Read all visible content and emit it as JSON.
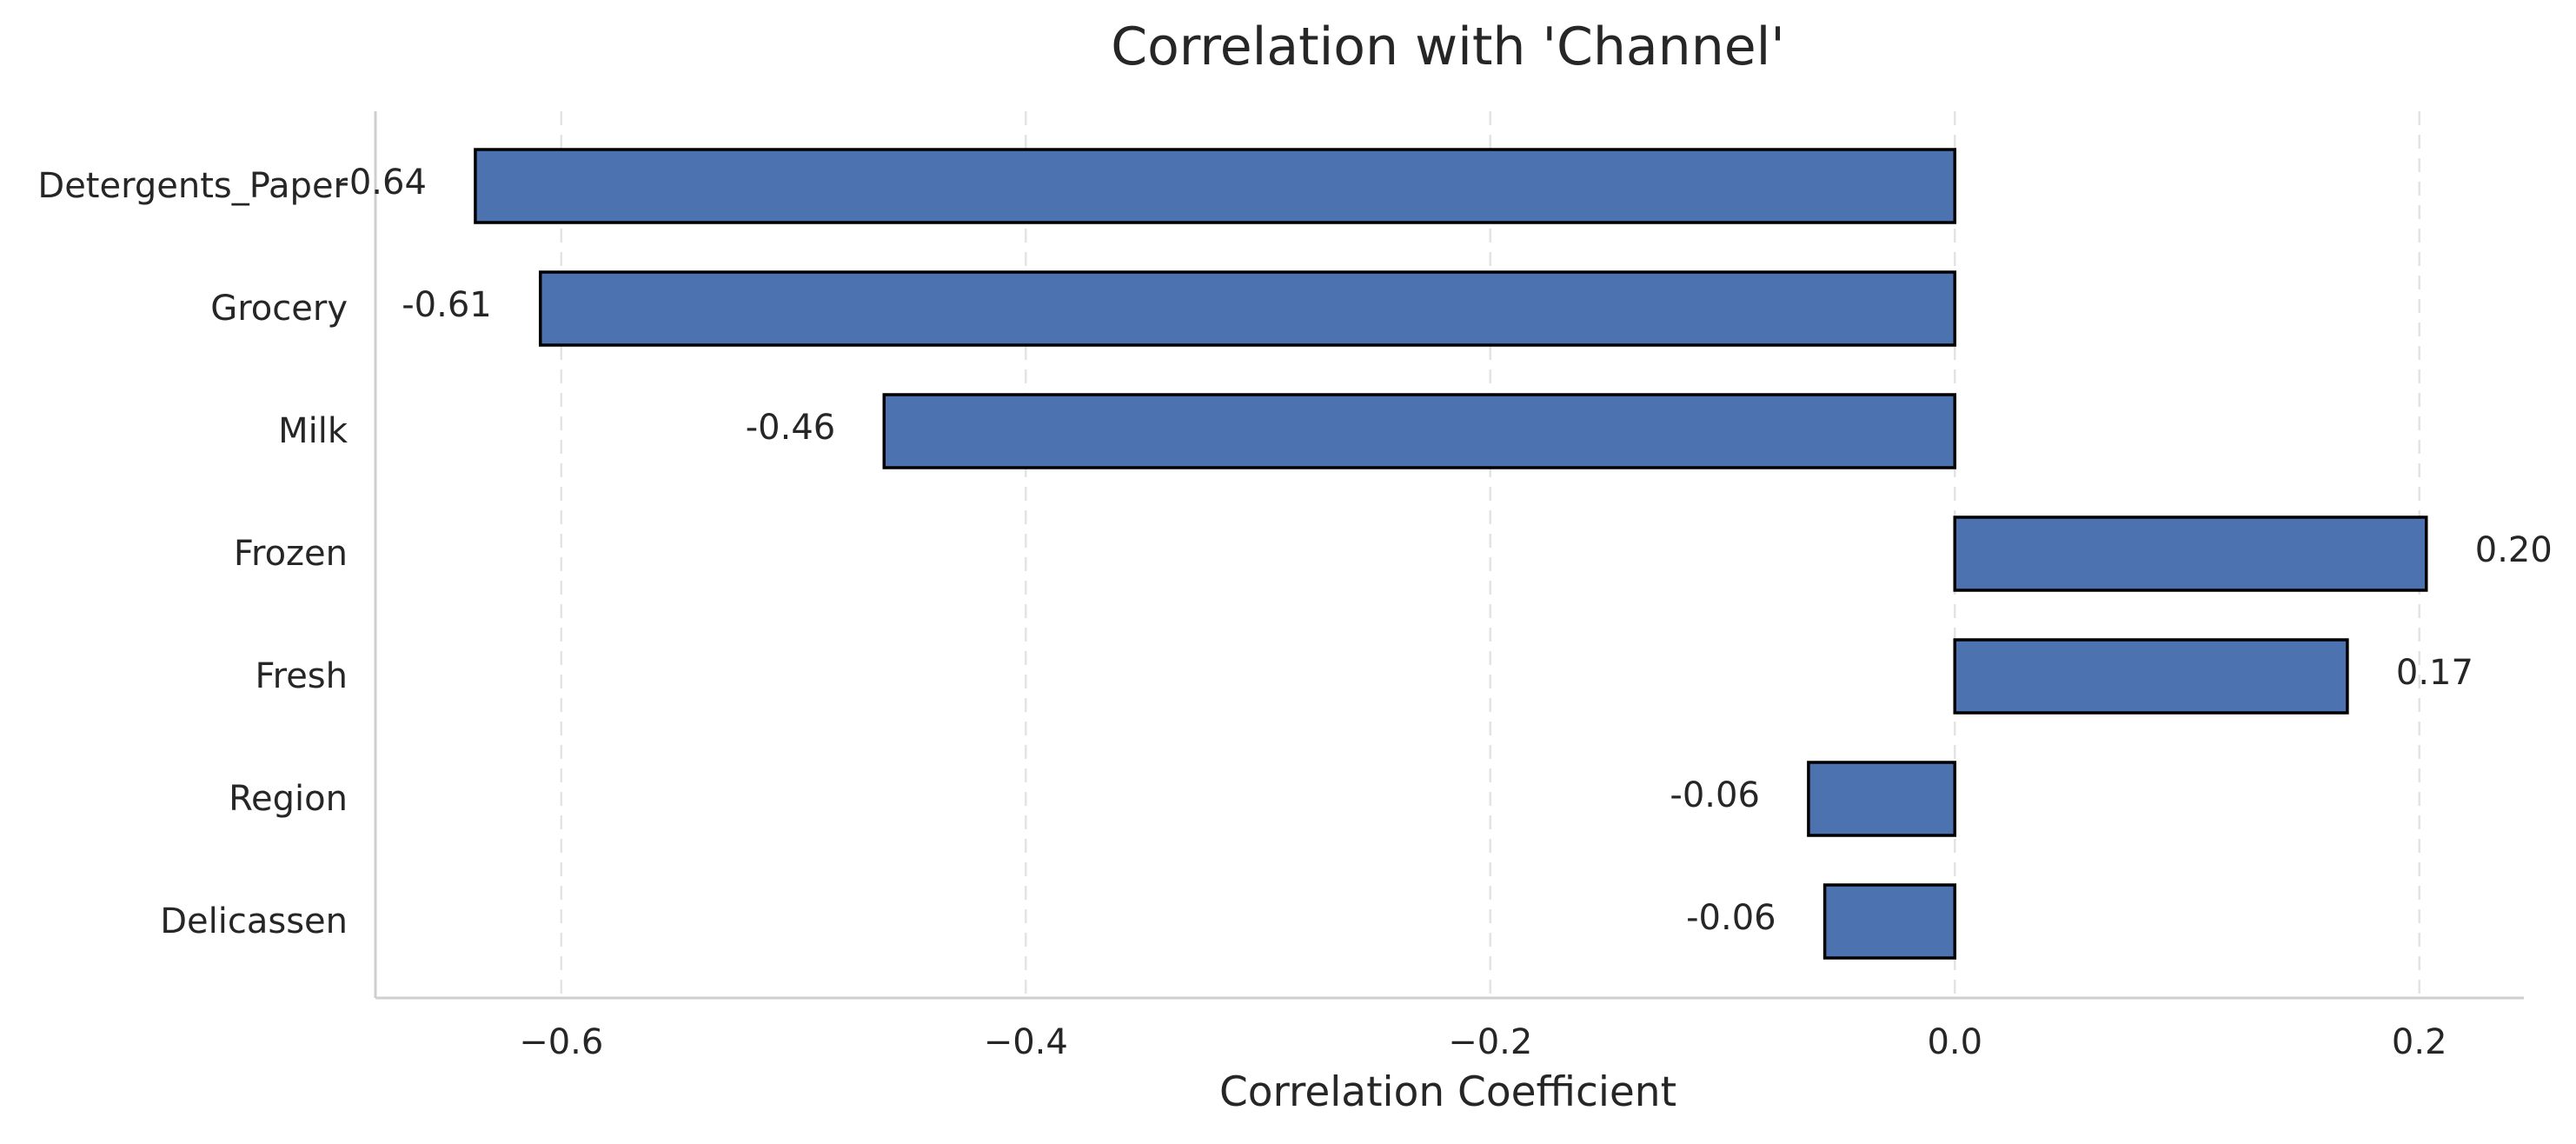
{
  "chart_data": {
    "type": "bar",
    "orientation": "horizontal",
    "title": "Correlation with 'Channel'",
    "xlabel": "Correlation Coefficient",
    "ylabel": "",
    "categories": [
      "Detergents_Paper",
      "Grocery",
      "Milk",
      "Frozen",
      "Fresh",
      "Region",
      "Delicassen"
    ],
    "values": [
      -0.637,
      -0.609,
      -0.461,
      0.203,
      0.169,
      -0.063,
      -0.056
    ],
    "value_labels": [
      "-0.64",
      "-0.61",
      "-0.46",
      "0.20",
      "0.17",
      "-0.06",
      "-0.06"
    ],
    "xlim": [
      -0.68,
      0.245
    ],
    "xticks": [
      -0.6,
      -0.4,
      -0.2,
      0.0,
      0.2
    ],
    "xtick_labels": [
      "−0.6",
      "−0.4",
      "−0.2",
      "0.0",
      "0.2"
    ],
    "grid": "x-dashed",
    "legend": "none",
    "colors": {
      "bar": "#4c72b0",
      "edge": "#000000"
    }
  }
}
